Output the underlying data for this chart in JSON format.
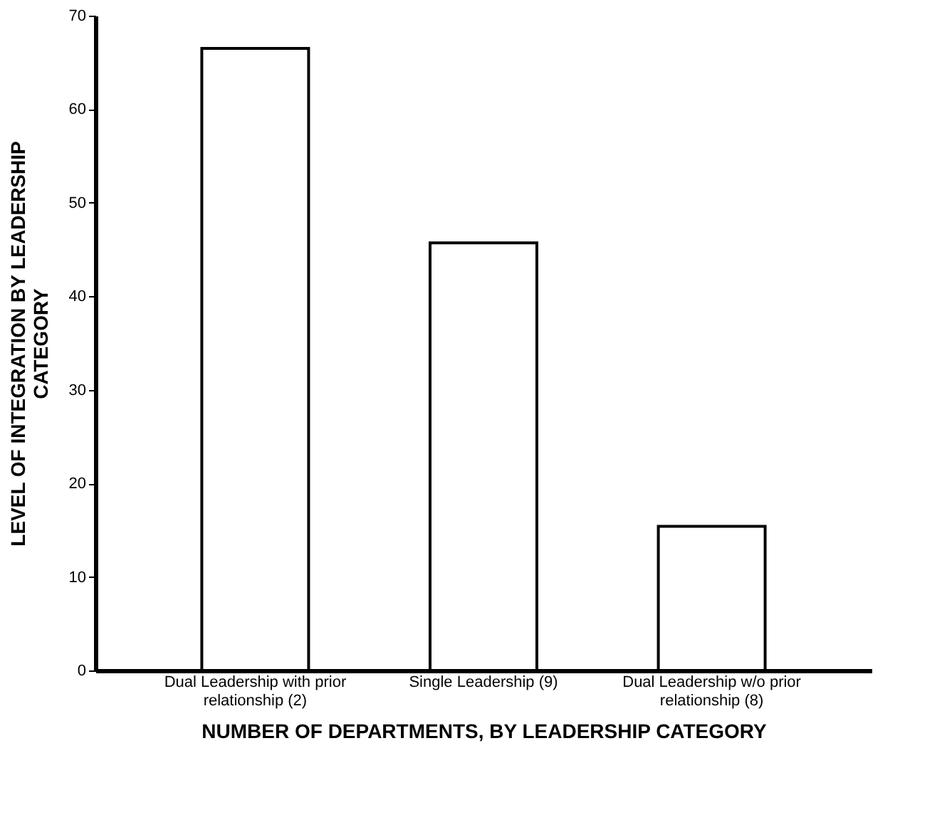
{
  "chart_data": {
    "type": "bar",
    "categories": [
      "Dual Leadership with prior relationship (2)",
      "Single Leadership (9)",
      "Dual Leadership w/o prior relationship (8)"
    ],
    "values": [
      66.5,
      45.7,
      15.4
    ],
    "color": "#ffffff",
    "xlabel": "NUMBER OF DEPARTMENTS, BY LEADERSHIP CATEGORY",
    "ylabel": "LEVEL OF INTEGRATION BY LEADERSHIP CATEGORY",
    "ylim": [
      0,
      70
    ],
    "yticks": [
      0,
      10,
      20,
      30,
      40,
      50,
      60,
      70
    ],
    "grid": false
  }
}
